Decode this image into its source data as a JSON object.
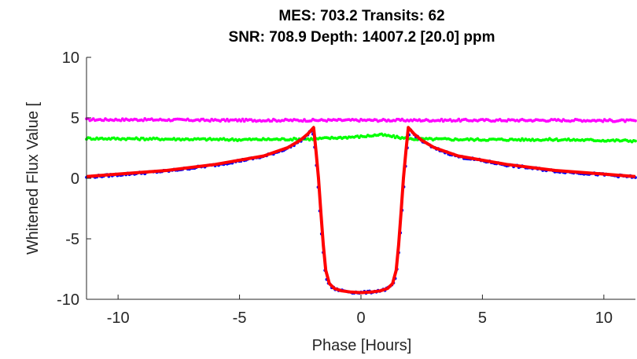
{
  "chart_data": {
    "type": "line",
    "title_lines": [
      "MES: 703.2   Transits: 62",
      "SNR: 708.9   Depth: 14007.2 [20.0] ppm"
    ],
    "xlabel": "Phase [Hours]",
    "ylabel": "Whitened Flux Value [",
    "xlim": [
      -11.3,
      11.3
    ],
    "ylim": [
      -10,
      10
    ],
    "xticks": [
      -10,
      -5,
      0,
      5,
      10
    ],
    "xtick_labels": [
      "-10",
      "-5",
      "0",
      "5",
      "10"
    ],
    "yticks": [
      -10,
      -5,
      0,
      5,
      10
    ],
    "ytick_labels": [
      "-10",
      "-5",
      "0",
      "5",
      "10"
    ],
    "grid": false,
    "series": [
      {
        "color": "#ff00ff",
        "style": "dots",
        "x": [
          -11.3,
          -9,
          -6,
          -3,
          0,
          3,
          6,
          9,
          11.3
        ],
        "y": [
          4.85,
          4.85,
          4.8,
          4.8,
          4.8,
          4.8,
          4.8,
          4.8,
          4.75
        ]
      },
      {
        "color": "#00ff00",
        "style": "dots",
        "x": [
          -11.3,
          -8,
          -5,
          -2,
          0,
          0.8,
          2,
          5,
          8,
          11.3
        ],
        "y": [
          3.3,
          3.25,
          3.2,
          3.25,
          3.45,
          3.6,
          3.25,
          3.2,
          3.2,
          3.1
        ]
      },
      {
        "color": "#0000ff",
        "style": "dots",
        "x": [
          -11.3,
          -10,
          -8,
          -6,
          -4,
          -3,
          -2.5,
          -2.2,
          -2.0,
          -1.9,
          -1.8,
          -1.7,
          -1.6,
          -1.5,
          -1.4,
          -1.2,
          -1.0,
          -0.7,
          -0.4,
          0,
          0.4,
          0.7,
          1.0,
          1.2,
          1.4,
          1.5,
          1.6,
          1.7,
          1.8,
          1.9,
          2.0,
          2.2,
          2.5,
          3,
          4,
          6,
          8,
          10,
          11.3
        ],
        "y": [
          0.1,
          0.3,
          0.6,
          1.1,
          1.8,
          2.5,
          3.1,
          3.6,
          4.05,
          2.4,
          0.2,
          -2.5,
          -5.2,
          -7.4,
          -8.5,
          -9.0,
          -9.2,
          -9.3,
          -9.4,
          -9.45,
          -9.4,
          -9.3,
          -9.2,
          -9.0,
          -8.5,
          -7.4,
          -5.2,
          -2.5,
          0.2,
          2.4,
          4.05,
          3.6,
          3.1,
          2.5,
          1.8,
          1.1,
          0.6,
          0.3,
          0.1
        ]
      },
      {
        "color": "#ff0000",
        "style": "line",
        "x": [
          -11.3,
          -10,
          -8,
          -6,
          -4,
          -3,
          -2.5,
          -2.2,
          -1.95,
          -1.85,
          -1.75,
          -1.65,
          -1.55,
          -1.45,
          -1.3,
          -1.1,
          -0.8,
          -0.4,
          0,
          0.4,
          0.8,
          1.1,
          1.3,
          1.45,
          1.55,
          1.65,
          1.75,
          1.85,
          1.95,
          2.2,
          2.5,
          3,
          4,
          6,
          8,
          10,
          11.3
        ],
        "y": [
          0.15,
          0.35,
          0.65,
          1.15,
          1.85,
          2.55,
          3.15,
          3.65,
          4.2,
          2.2,
          0.0,
          -2.8,
          -5.5,
          -7.6,
          -8.7,
          -9.1,
          -9.3,
          -9.4,
          -9.45,
          -9.4,
          -9.3,
          -9.1,
          -8.7,
          -7.6,
          -5.5,
          -2.8,
          0.0,
          2.2,
          4.2,
          3.65,
          3.15,
          2.55,
          1.85,
          1.15,
          0.65,
          0.35,
          0.15
        ]
      }
    ]
  }
}
